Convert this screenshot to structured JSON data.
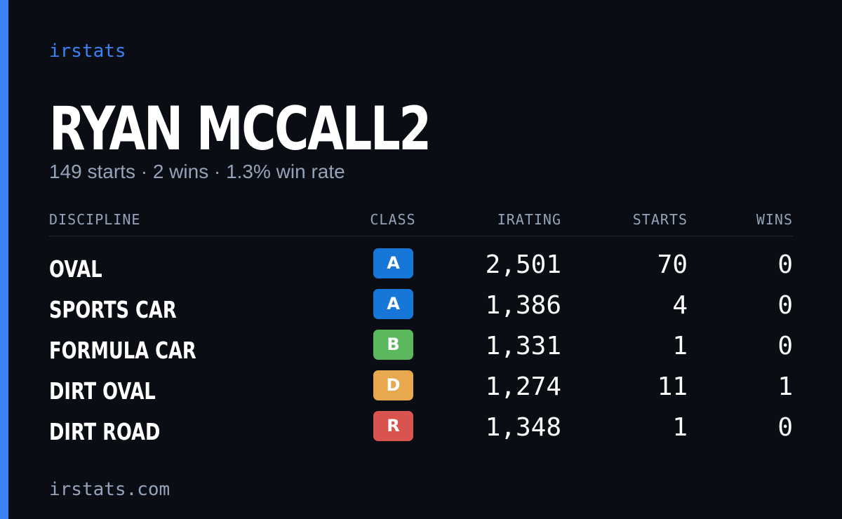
{
  "brand": "irstats",
  "driver": {
    "name": "RYAN MCCALL2",
    "summary": "149 starts · 2 wins · 1.3% win rate"
  },
  "table": {
    "headers": {
      "discipline": "DISCIPLINE",
      "class": "CLASS",
      "irating": "IRATING",
      "starts": "STARTS",
      "wins": "WINS"
    },
    "rows": [
      {
        "discipline": "OVAL",
        "class": "A",
        "class_color": "#1677d9",
        "irating": "2,501",
        "starts": "70",
        "wins": "0"
      },
      {
        "discipline": "SPORTS CAR",
        "class": "A",
        "class_color": "#1677d9",
        "irating": "1,386",
        "starts": "4",
        "wins": "0"
      },
      {
        "discipline": "FORMULA CAR",
        "class": "B",
        "class_color": "#5cb85c",
        "irating": "1,331",
        "starts": "1",
        "wins": "0"
      },
      {
        "discipline": "DIRT OVAL",
        "class": "D",
        "class_color": "#e8a84e",
        "irating": "1,274",
        "starts": "11",
        "wins": "1"
      },
      {
        "discipline": "DIRT ROAD",
        "class": "R",
        "class_color": "#d9534f",
        "irating": "1,348",
        "starts": "1",
        "wins": "0"
      }
    ]
  },
  "footer": {
    "url": "irstats.com"
  },
  "colors": {
    "background": "#0a0d14",
    "accent": "#3b82f6",
    "muted_text": "#94a3b8",
    "primary_text": "#ffffff"
  }
}
